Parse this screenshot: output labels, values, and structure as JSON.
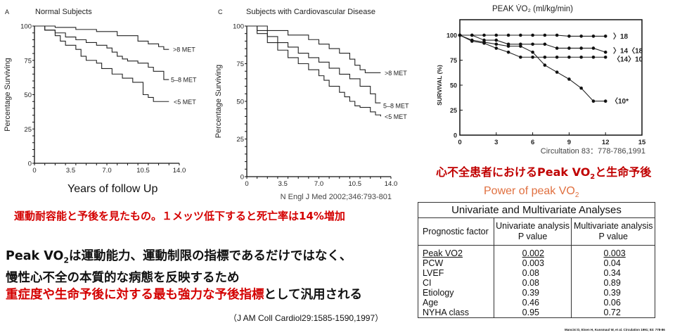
{
  "colors": {
    "red": "#d40000",
    "orange": "#e07040",
    "ink": "#111111"
  },
  "chart_data": [
    {
      "type": "line",
      "step": true,
      "panel_letter": "A",
      "title": "Normal Subjects",
      "ylabel": "Percentage Surviving",
      "xlabel": "Years of follow Up",
      "xlim": [
        0,
        14
      ],
      "ylim": [
        0,
        100
      ],
      "xticks": [
        "0",
        "3.5",
        "7.0",
        "10.5",
        "14.0"
      ],
      "yticks": [
        "0",
        "25",
        "50",
        "75",
        "100"
      ],
      "series": [
        {
          "name": ">8 MET",
          "x": [
            0,
            2,
            4,
            6,
            8,
            10,
            11,
            12,
            12.5,
            13
          ],
          "y": [
            100,
            99,
            97.5,
            96,
            93,
            89,
            87,
            85,
            83,
            83
          ]
        },
        {
          "name": "5–8 MET",
          "x": [
            0,
            1,
            2,
            3,
            4,
            5,
            6,
            7,
            7.5,
            8,
            8.5,
            9,
            10,
            11,
            11.5,
            12.5,
            12.5,
            13
          ],
          "y": [
            100,
            97,
            95,
            92,
            90,
            88,
            86,
            84,
            81,
            78,
            76,
            74.5,
            73,
            70,
            67,
            66,
            61,
            61
          ]
        },
        {
          "name": "<5 MET",
          "x": [
            0,
            1,
            2,
            2.5,
            3,
            4,
            4.5,
            5,
            6,
            6.5,
            7.5,
            8.5,
            9.5,
            10.5,
            10.5,
            11,
            11.5,
            11.5,
            13
          ],
          "y": [
            100,
            97,
            93,
            89,
            86,
            83,
            78,
            75,
            73,
            69,
            65,
            62,
            59,
            57,
            50,
            48,
            48,
            45,
            45
          ]
        }
      ]
    },
    {
      "type": "line",
      "step": true,
      "panel_letter": "C",
      "title": "Subjects with Cardiovascular Disease",
      "ylabel": "Percentage Surviving",
      "xlabel": "",
      "xlim": [
        0,
        14
      ],
      "ylim": [
        0,
        100
      ],
      "xticks": [
        "0",
        "3.5",
        "7.0",
        "10.5",
        "14.0"
      ],
      "yticks": [
        "0",
        "25",
        "50",
        "75",
        "100"
      ],
      "source": "N Engl J Med 2002;346:793-801",
      "series": [
        {
          "name": ">8 MET",
          "x": [
            0,
            2,
            4,
            6,
            7,
            8,
            9,
            10,
            10.5,
            11,
            11.5,
            12,
            13
          ],
          "y": [
            100,
            97,
            94,
            91,
            88,
            85,
            82,
            78,
            74,
            71,
            69,
            69,
            69
          ]
        },
        {
          "name": "5–8 MET",
          "x": [
            0,
            1,
            2,
            3,
            4,
            5,
            6,
            7,
            8,
            9,
            10,
            11,
            12,
            12.5,
            12.5,
            13
          ],
          "y": [
            100,
            97,
            93,
            89,
            86,
            82,
            79,
            76,
            72,
            68,
            65,
            60,
            55,
            52,
            49,
            49
          ]
        },
        {
          "name": "<5 MET",
          "x": [
            0,
            1,
            2,
            3,
            4,
            5,
            6,
            7,
            7.5,
            8,
            9,
            9.5,
            10,
            10.5,
            11,
            12,
            12.5,
            13
          ],
          "y": [
            100,
            95,
            89,
            84,
            79,
            75,
            71,
            67,
            64,
            60,
            56,
            53,
            50,
            47,
            46,
            43,
            41,
            40
          ]
        }
      ]
    },
    {
      "type": "line",
      "step": false,
      "markers": true,
      "title": "PEAK V̇O₂ (ml/kg/min)",
      "ylabel": "SURVIVAL (%)",
      "xlabel": "",
      "xlim": [
        0,
        15
      ],
      "ylim": [
        0,
        100
      ],
      "xticks": [
        "0",
        "3",
        "6",
        "9",
        "12",
        "15"
      ],
      "yticks": [
        "0",
        "25",
        "50",
        "75",
        "100"
      ],
      "source": "Circultation 83：778-786,1991",
      "series": [
        {
          "name": "〉18",
          "x": [
            0,
            1,
            2,
            3,
            4,
            5,
            6,
            7,
            8,
            9,
            10,
            11,
            12
          ],
          "y": [
            100,
            100,
            100,
            100,
            100,
            100,
            100,
            100,
            100,
            99,
            99,
            99,
            99
          ]
        },
        {
          "name": "〉14〈18",
          "x": [
            0,
            1,
            2,
            3,
            4,
            5,
            6,
            7,
            8,
            9,
            10,
            11,
            12
          ],
          "y": [
            100,
            100,
            95,
            95,
            91,
            91,
            91,
            91,
            87,
            87,
            87,
            87,
            83
          ]
        },
        {
          "name": "〈14〉10",
          "x": [
            0,
            1,
            2,
            3,
            4,
            5,
            6,
            7,
            8,
            9,
            10,
            11,
            12
          ],
          "y": [
            100,
            94,
            92,
            87,
            83,
            78,
            78,
            78,
            78,
            78,
            78,
            78,
            78
          ]
        },
        {
          "name": "〈10*",
          "x": [
            0,
            1,
            2,
            3,
            4,
            5,
            6,
            7,
            8,
            9,
            10,
            11,
            12
          ],
          "y": [
            100,
            95,
            93,
            91,
            89,
            89,
            83,
            70,
            63,
            56,
            47,
            34,
            34
          ]
        }
      ]
    }
  ],
  "captions": {
    "met_note": "運動耐容能と予後を見たもの。１メッツ低下すると死亡率は14%増加",
    "heart_failure_title_pre": "心不全患者におけるPeak VO",
    "heart_failure_title_sub": "2",
    "heart_failure_title_post": "と生命予後",
    "power_title_pre": "Power of peak VO",
    "power_title_sub": "2",
    "body_line1_pre": "Peak VO",
    "body_line1_sub": "2",
    "body_line1_post": "は運動能力、運動制限の指標であるだけではなく、",
    "body_line2": "慢性心不全の本質的な病態を反映するため",
    "body_line3_red": "重症度や生命予後に対する最も強力な予後指標",
    "body_line3_black": "として汎用される",
    "jacc_ref": "（J AM Coll Cardiol29:1585-1590,1997）"
  },
  "table": {
    "title": "Univariate and Multivariate Analyses",
    "headers": [
      "Prognostic factor",
      "Univariate analysis\nP value",
      "Multivariate analysis\nP value"
    ],
    "header_lines": [
      [
        "Prognostic factor"
      ],
      [
        "Univariate analysis",
        "P value"
      ],
      [
        "Multivariate analysis",
        "P value"
      ]
    ],
    "rows": [
      [
        "Peak VO2",
        "0.002",
        "0.003"
      ],
      [
        "PCW",
        "0.003",
        "0.04"
      ],
      [
        "LVEF",
        "0.08",
        "0.34"
      ],
      [
        "CI",
        "0.08",
        "0.89"
      ],
      [
        "Etiology",
        "0.39",
        "0.39"
      ],
      [
        "Age",
        "0.46",
        "0.06"
      ],
      [
        "NYHA class",
        "0.95",
        "0.72"
      ]
    ],
    "reference": "Mancini D, Eisen H, Kussmaul W, et al. Circulation 1991; 83: 778-86"
  }
}
